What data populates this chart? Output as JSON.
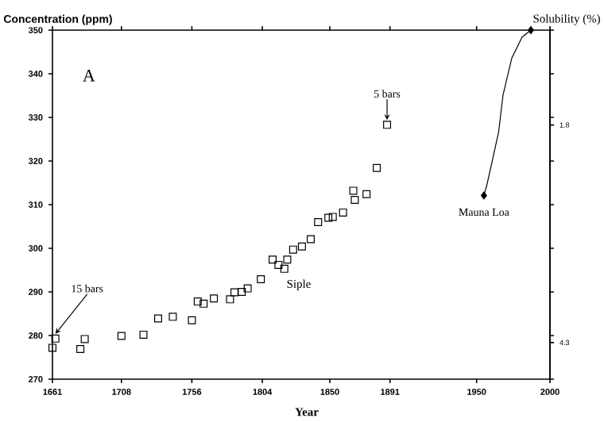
{
  "chart_data": {
    "type": "scatter",
    "xlabel": "Year",
    "ylabel": "Concentration (ppm)",
    "y2label": "Solubility (%)",
    "xlim": [
      1661,
      2000
    ],
    "xticks": [
      1661,
      1708,
      1756,
      1804,
      1850,
      1891,
      1950,
      2000
    ],
    "ylim": [
      270,
      350
    ],
    "yticks": [
      270,
      280,
      290,
      300,
      310,
      320,
      330,
      340,
      350
    ],
    "y2lim": [
      4.72,
      0.71
    ],
    "y2ticks": [
      1.8,
      4.3
    ],
    "marker": "square",
    "series": [
      {
        "color": "#000000",
        "x": [
          1661,
          1663,
          1680,
          1683,
          1708,
          1723,
          1733,
          1743,
          1756,
          1760,
          1764,
          1771,
          1782,
          1785,
          1790,
          1794,
          1803,
          1811,
          1815,
          1819,
          1821,
          1825,
          1831,
          1837,
          1842,
          1849,
          1852,
          1859,
          1866,
          1867,
          1875,
          1882,
          1889
        ],
        "values": [
          277.2,
          279.3,
          276.9,
          279.2,
          279.9,
          280.2,
          283.9,
          284.3,
          283.5,
          287.8,
          287.3,
          288.5,
          288.3,
          289.9,
          290.0,
          290.8,
          292.9,
          297.4,
          296.2,
          295.3,
          297.4,
          299.7,
          300.4,
          302.1,
          306.0,
          307.0,
          307.2,
          308.2,
          313.2,
          311.1,
          312.4,
          318.4,
          328.3
        ]
      },
      {
        "type": "line",
        "marker": "none",
        "color": "#000000",
        "x": [
          1955,
          1957,
          1965,
          1968,
          1974,
          1981,
          1987
        ],
        "values": [
          312.1,
          314.5,
          326.6,
          335.1,
          343.6,
          348.4,
          350
        ]
      },
      {
        "type": "scatter",
        "marker": "diamond",
        "color": "#000000",
        "x": [
          1955,
          1987
        ],
        "values": [
          312.1,
          350
        ]
      }
    ],
    "annotations": [
      "A",
      "Siple",
      {
        "text": "15 bars",
        "x": 1663,
        "y": 279.3
      },
      {
        "text": "5 bars",
        "x": 1889,
        "y": 328.3
      },
      {
        "text": "Mauna Loa",
        "x": 1955,
        "y": 312.1
      }
    ]
  }
}
